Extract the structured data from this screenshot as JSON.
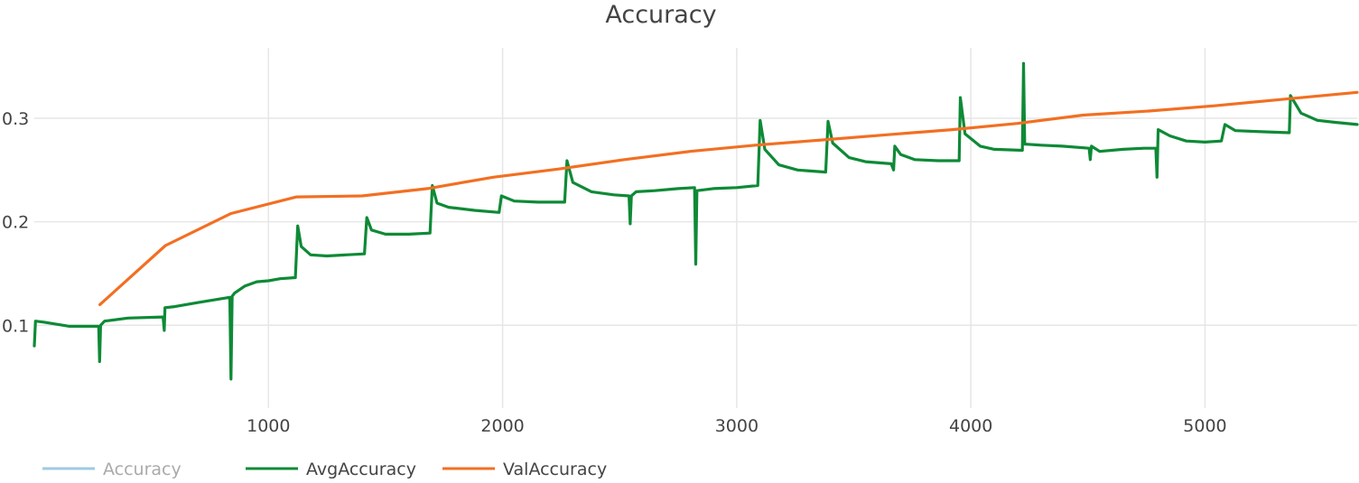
{
  "chart_data": {
    "type": "line",
    "title": "Accuracy",
    "xlabel": "",
    "ylabel": "",
    "xlim": [
      0,
      5650
    ],
    "ylim": [
      0.02,
      0.375
    ],
    "x_ticks": [
      1000,
      2000,
      3000,
      4000,
      5000
    ],
    "y_ticks": [
      0.1,
      0.2,
      0.3
    ],
    "x_tick_labels": [
      "1000",
      "2000",
      "3000",
      "4000",
      "5000"
    ],
    "y_tick_labels": [
      "0.1",
      "0.2",
      "0.3"
    ],
    "grid": true,
    "legend_position": "bottom-left",
    "series": [
      {
        "name": "Accuracy",
        "color": "#9ecae1",
        "visible": false,
        "points": []
      },
      {
        "name": "AvgAccuracy",
        "color": "#0e8a36",
        "visible": true,
        "points": [
          [
            0,
            0.08
          ],
          [
            5,
            0.104
          ],
          [
            40,
            0.103
          ],
          [
            150,
            0.099
          ],
          [
            275,
            0.099
          ],
          [
            279,
            0.065
          ],
          [
            283,
            0.1
          ],
          [
            300,
            0.104
          ],
          [
            400,
            0.107
          ],
          [
            550,
            0.108
          ],
          [
            555,
            0.095
          ],
          [
            558,
            0.117
          ],
          [
            600,
            0.118
          ],
          [
            700,
            0.122
          ],
          [
            835,
            0.127
          ],
          [
            840,
            0.048
          ],
          [
            845,
            0.128
          ],
          [
            855,
            0.131
          ],
          [
            900,
            0.138
          ],
          [
            950,
            0.142
          ],
          [
            1000,
            0.143
          ],
          [
            1050,
            0.145
          ],
          [
            1115,
            0.146
          ],
          [
            1125,
            0.196
          ],
          [
            1140,
            0.176
          ],
          [
            1180,
            0.168
          ],
          [
            1250,
            0.167
          ],
          [
            1330,
            0.168
          ],
          [
            1410,
            0.169
          ],
          [
            1420,
            0.204
          ],
          [
            1440,
            0.192
          ],
          [
            1500,
            0.188
          ],
          [
            1600,
            0.188
          ],
          [
            1690,
            0.189
          ],
          [
            1700,
            0.235
          ],
          [
            1720,
            0.218
          ],
          [
            1770,
            0.214
          ],
          [
            1880,
            0.211
          ],
          [
            1985,
            0.209
          ],
          [
            1995,
            0.225
          ],
          [
            2050,
            0.22
          ],
          [
            2150,
            0.219
          ],
          [
            2265,
            0.219
          ],
          [
            2275,
            0.259
          ],
          [
            2300,
            0.238
          ],
          [
            2380,
            0.229
          ],
          [
            2475,
            0.226
          ],
          [
            2540,
            0.225
          ],
          [
            2545,
            0.198
          ],
          [
            2550,
            0.225
          ],
          [
            2570,
            0.229
          ],
          [
            2650,
            0.23
          ],
          [
            2750,
            0.232
          ],
          [
            2820,
            0.233
          ],
          [
            2825,
            0.159
          ],
          [
            2830,
            0.23
          ],
          [
            2900,
            0.232
          ],
          [
            3000,
            0.233
          ],
          [
            3090,
            0.235
          ],
          [
            3100,
            0.298
          ],
          [
            3120,
            0.27
          ],
          [
            3180,
            0.255
          ],
          [
            3260,
            0.25
          ],
          [
            3380,
            0.248
          ],
          [
            3390,
            0.297
          ],
          [
            3410,
            0.276
          ],
          [
            3480,
            0.262
          ],
          [
            3550,
            0.258
          ],
          [
            3660,
            0.256
          ],
          [
            3670,
            0.25
          ],
          [
            3675,
            0.273
          ],
          [
            3700,
            0.265
          ],
          [
            3760,
            0.26
          ],
          [
            3860,
            0.259
          ],
          [
            3950,
            0.259
          ],
          [
            3955,
            0.32
          ],
          [
            3975,
            0.285
          ],
          [
            4040,
            0.273
          ],
          [
            4100,
            0.27
          ],
          [
            4220,
            0.269
          ],
          [
            4225,
            0.353
          ],
          [
            4230,
            0.275
          ],
          [
            4300,
            0.274
          ],
          [
            4390,
            0.273
          ],
          [
            4505,
            0.271
          ],
          [
            4510,
            0.26
          ],
          [
            4515,
            0.273
          ],
          [
            4550,
            0.268
          ],
          [
            4650,
            0.27
          ],
          [
            4740,
            0.271
          ],
          [
            4790,
            0.271
          ],
          [
            4795,
            0.243
          ],
          [
            4800,
            0.289
          ],
          [
            4850,
            0.283
          ],
          [
            4920,
            0.278
          ],
          [
            5000,
            0.277
          ],
          [
            5070,
            0.278
          ],
          [
            5085,
            0.294
          ],
          [
            5130,
            0.288
          ],
          [
            5240,
            0.287
          ],
          [
            5360,
            0.286
          ],
          [
            5365,
            0.322
          ],
          [
            5410,
            0.305
          ],
          [
            5480,
            0.298
          ],
          [
            5560,
            0.296
          ],
          [
            5650,
            0.294
          ]
        ]
      },
      {
        "name": "ValAccuracy",
        "color": "#f26f22",
        "visible": true,
        "points": [
          [
            280,
            0.12
          ],
          [
            560,
            0.177
          ],
          [
            840,
            0.208
          ],
          [
            1120,
            0.224
          ],
          [
            1400,
            0.225
          ],
          [
            1680,
            0.232
          ],
          [
            1960,
            0.243
          ],
          [
            2240,
            0.251
          ],
          [
            2520,
            0.26
          ],
          [
            2800,
            0.268
          ],
          [
            3080,
            0.274
          ],
          [
            3360,
            0.279
          ],
          [
            3640,
            0.284
          ],
          [
            3920,
            0.289
          ],
          [
            4200,
            0.295
          ],
          [
            4480,
            0.303
          ],
          [
            4760,
            0.307
          ],
          [
            5040,
            0.312
          ],
          [
            5320,
            0.318
          ],
          [
            5650,
            0.325
          ]
        ]
      }
    ]
  },
  "legend_colors": {
    "inactive_text": "#aaaaaa",
    "active_text": "#444444"
  }
}
